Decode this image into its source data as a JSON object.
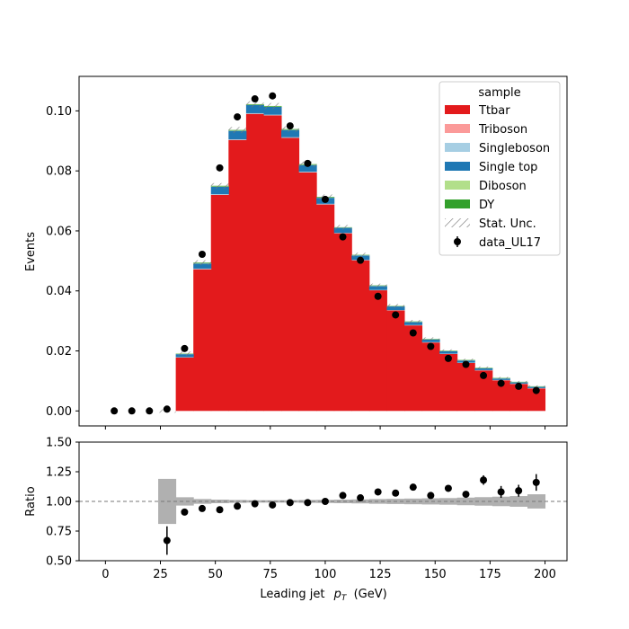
{
  "chart_data": {
    "type": "bar",
    "stacked": true,
    "histtype": "stepfilled",
    "x_bin_edges": [
      0,
      8,
      16,
      24,
      32,
      40,
      48,
      56,
      64,
      72,
      80,
      88,
      96,
      104,
      112,
      120,
      128,
      136,
      144,
      152,
      160,
      168,
      176,
      184,
      192,
      200
    ],
    "series": [
      {
        "name": "Ttbar",
        "color": "#e31a1c",
        "values": [
          0,
          0,
          0,
          0,
          0.0178,
          0.0472,
          0.072,
          0.0903,
          0.099,
          0.0985,
          0.091,
          0.0795,
          0.0688,
          0.0592,
          0.0502,
          0.0402,
          0.0335,
          0.0285,
          0.0228,
          0.019,
          0.016,
          0.0135,
          0.0102,
          0.009,
          0.0075
        ]
      },
      {
        "name": "Triboson",
        "color": "#fb9a99",
        "values": [
          0,
          0,
          0,
          0,
          2e-05,
          3e-05,
          3e-05,
          3e-05,
          3e-05,
          3e-05,
          3e-05,
          3e-05,
          3e-05,
          2e-05,
          2e-05,
          2e-05,
          2e-05,
          2e-05,
          2e-05,
          1e-05,
          1e-05,
          1e-05,
          1e-05,
          1e-05,
          1e-05
        ]
      },
      {
        "name": "Singleboson",
        "color": "#a6cee3",
        "values": [
          0,
          0,
          0,
          0,
          0.0001,
          0.0002,
          0.0002,
          0.0002,
          0.0002,
          0.0002,
          0.0002,
          0.0002,
          0.0002,
          0.0001,
          0.0001,
          0.0001,
          0.0001,
          0.0001,
          0.0001,
          0.0001,
          0.0001,
          0.0001,
          0.0001,
          0.0001,
          0.0001
        ]
      },
      {
        "name": "Single top",
        "color": "#1f78b4",
        "values": [
          0,
          0,
          0,
          0,
          0.001,
          0.0017,
          0.0025,
          0.0028,
          0.0027,
          0.0026,
          0.0024,
          0.0022,
          0.002,
          0.0017,
          0.0015,
          0.0013,
          0.0012,
          0.001,
          0.0009,
          0.0008,
          0.0007,
          0.0006,
          0.0005,
          0.0004,
          0.0004
        ]
      },
      {
        "name": "Diboson",
        "color": "#b2df8a",
        "values": [
          0,
          0,
          0,
          0,
          0.0001,
          0.0001,
          0.0001,
          0.0001,
          0.0001,
          0.0001,
          0.0001,
          0.0001,
          0.0001,
          0.0001,
          0.0001,
          0.0001,
          0.0001,
          0.0001,
          0.0001,
          0.0001,
          0.0001,
          0.0001,
          0.0001,
          0.0001,
          0.0001
        ]
      },
      {
        "name": "DY",
        "color": "#33a02c",
        "values": [
          0,
          0,
          0,
          0,
          0.0001,
          0.0002,
          0.0002,
          0.0002,
          0.0002,
          0.0002,
          0.0002,
          0.0002,
          0.0002,
          0.0001,
          0.0001,
          0.0001,
          0.0001,
          0.0001,
          0.0001,
          0.0001,
          0.0001,
          0.0001,
          0.0001,
          0.0001,
          0.0001
        ]
      }
    ],
    "stat_unc": [
      0,
      0,
      0,
      0.0006,
      0.0007,
      0.0008,
      0.0009,
      0.001,
      0.001,
      0.001,
      0.0009,
      0.0009,
      0.0008,
      0.0008,
      0.0007,
      0.0006,
      0.0006,
      0.0005,
      0.0005,
      0.0004,
      0.0004,
      0.0004,
      0.0003,
      0.0003,
      0.0003
    ],
    "data": {
      "name": "data_UL17",
      "x": [
        4,
        12,
        20,
        28,
        36,
        44,
        52,
        60,
        68,
        76,
        84,
        92,
        100,
        108,
        116,
        124,
        132,
        140,
        148,
        156,
        164,
        172,
        180,
        188,
        196
      ],
      "y": [
        0,
        0,
        0,
        0.0006,
        0.0208,
        0.0522,
        0.081,
        0.098,
        0.104,
        0.105,
        0.095,
        0.0825,
        0.0705,
        0.058,
        0.0502,
        0.0382,
        0.032,
        0.026,
        0.0215,
        0.0175,
        0.0155,
        0.0118,
        0.0092,
        0.0082,
        0.0068
      ],
      "yerr": [
        0,
        0,
        0,
        0.0002,
        0.0004,
        0.0006,
        0.0007,
        0.0008,
        0.0008,
        0.0008,
        0.0008,
        0.0007,
        0.0007,
        0.0006,
        0.0006,
        0.0005,
        0.0005,
        0.0004,
        0.0004,
        0.0004,
        0.0004,
        0.0003,
        0.0003,
        0.0003,
        0.0003
      ]
    },
    "ratio": {
      "x": [
        28,
        36,
        44,
        52,
        60,
        68,
        76,
        84,
        92,
        100,
        108,
        116,
        124,
        132,
        140,
        148,
        156,
        164,
        172,
        180,
        188,
        196
      ],
      "y": [
        0.67,
        0.91,
        0.94,
        0.93,
        0.96,
        0.98,
        0.97,
        0.99,
        0.99,
        1.0,
        1.05,
        1.03,
        1.08,
        1.07,
        1.12,
        1.05,
        1.11,
        1.06,
        1.18,
        1.08,
        1.09,
        1.16
      ],
      "yerr": [
        0.12,
        0.02,
        0.01,
        0.01,
        0.01,
        0.01,
        0.01,
        0.01,
        0.01,
        0.01,
        0.01,
        0.015,
        0.015,
        0.015,
        0.02,
        0.02,
        0.025,
        0.025,
        0.04,
        0.05,
        0.05,
        0.07
      ],
      "unc_band": [
        0.19,
        0.035,
        0.02,
        0.015,
        0.012,
        0.01,
        0.01,
        0.01,
        0.012,
        0.013,
        0.015,
        0.017,
        0.02,
        0.022,
        0.024,
        0.026,
        0.028,
        0.032,
        0.036,
        0.04,
        0.045,
        0.06
      ],
      "reference_line": 1.0
    },
    "xlabel": "Leading jet",
    "xlabel_symbol": "p",
    "xlabel_subscript": "T",
    "xlabel_unit": "(GeV)",
    "ylabel_top": "Events",
    "ylabel_bottom": "Ratio",
    "xlim": [
      -12,
      210
    ],
    "ylim_top": [
      -0.005,
      0.1115
    ],
    "ylim_bottom": [
      0.5,
      1.5
    ],
    "xticks": [
      0,
      25,
      50,
      75,
      100,
      125,
      150,
      175,
      200
    ],
    "yticks_top": [
      0.0,
      0.02,
      0.04,
      0.06,
      0.08,
      0.1
    ],
    "yticks_bottom": [
      0.5,
      0.75,
      1.0,
      1.25,
      1.5
    ],
    "legend": {
      "title": "sample",
      "placement": "top-right",
      "entries": [
        "Ttbar",
        "Triboson",
        "Singleboson",
        "Single top",
        "Diboson",
        "DY",
        "Stat. Unc.",
        "data_UL17"
      ]
    },
    "band_color": "#b0b0b0",
    "grid": false
  }
}
